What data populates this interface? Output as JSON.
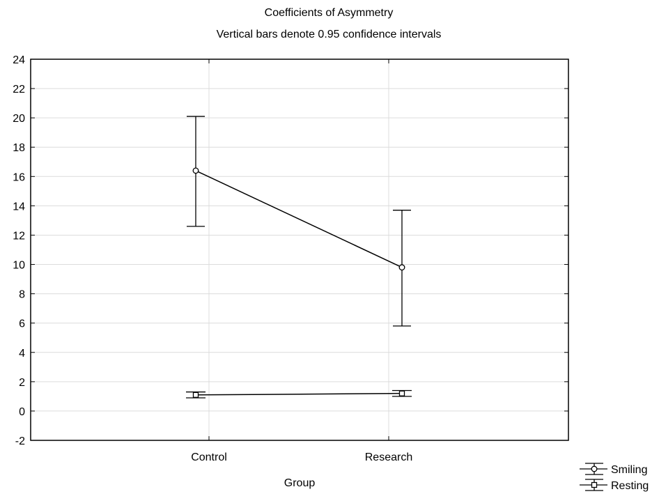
{
  "chart_data": {
    "type": "line",
    "title": "Coefficients of Asymmetry",
    "subtitle": "Vertical bars denote 0.95 confidence intervals",
    "xlabel": "Group",
    "ylabel": "",
    "categories": [
      "Control",
      "Research"
    ],
    "ylim": [
      -2,
      24
    ],
    "yticks": [
      "-2",
      "0",
      "2",
      "4",
      "6",
      "8",
      "10",
      "12",
      "14",
      "16",
      "18",
      "20",
      "22",
      "24"
    ],
    "grid": true,
    "legend_position": "bottom-right",
    "series": [
      {
        "name": "Smiling",
        "marker": "circle",
        "values": [
          16.4,
          9.8
        ],
        "ci_low": [
          12.6,
          5.8
        ],
        "ci_high": [
          20.1,
          13.7
        ]
      },
      {
        "name": "Resting",
        "marker": "square",
        "values": [
          1.1,
          1.2
        ],
        "ci_low": [
          0.9,
          1.0
        ],
        "ci_high": [
          1.3,
          1.4
        ]
      }
    ]
  }
}
